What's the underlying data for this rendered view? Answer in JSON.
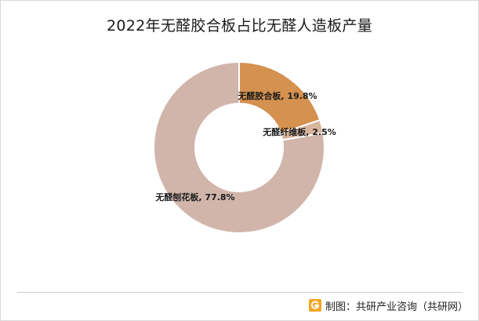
{
  "chart_data": {
    "type": "pie",
    "title": "2022年无醛胶合板占比无醛人造板产量",
    "categories": [
      "无醛胶合板",
      "无醛纤维板",
      "无醛刨花板"
    ],
    "values": [
      19.8,
      2.5,
      77.8
    ],
    "unit": "%",
    "labels": [
      "无醛胶合板, 19.8%",
      "无醛纤维板, 2.5%",
      "无醛刨花板, 77.8%"
    ],
    "colors": [
      "#d4914f",
      "#d7b59f",
      "#d1b5aa"
    ],
    "donut": true,
    "start_angle_deg": 0,
    "direction": "clockwise"
  },
  "footer": {
    "source": "制图：共研产业咨询（共研网）",
    "logo_icon": "gonyn-logo-icon"
  }
}
